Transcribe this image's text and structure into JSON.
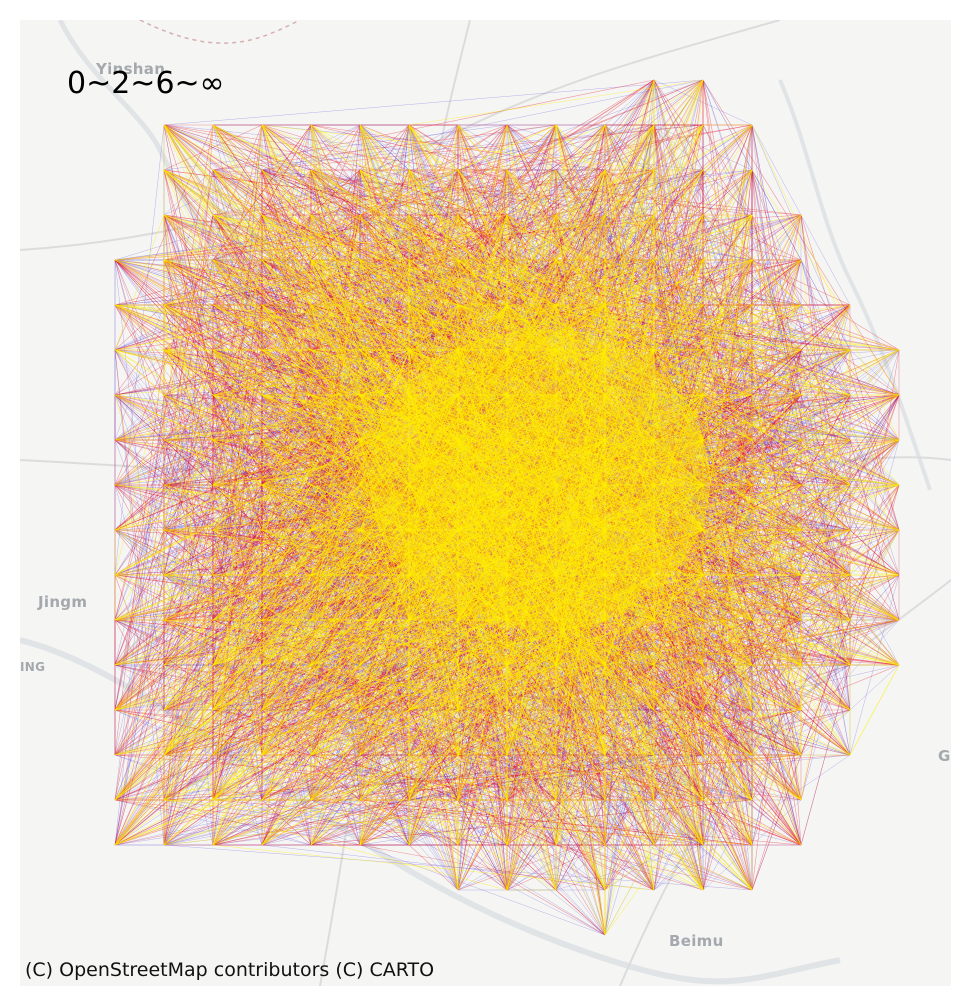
{
  "map": {
    "legend_title": "0~2~6~∞",
    "attribution": "(C) OpenStreetMap contributors (C) CARTO",
    "places": [
      {
        "id": "yinshan",
        "label": "Yinshan"
      },
      {
        "id": "jingmen",
        "label": "Jingm"
      },
      {
        "id": "ing",
        "label": "ING"
      },
      {
        "id": "beimu",
        "label": "Beimu"
      },
      {
        "id": "g-edge",
        "label": "G"
      }
    ],
    "flow_colors": {
      "low": "#4b35d6",
      "mid": "#e5152b",
      "high": "#ffee00"
    },
    "basemap_colors": {
      "background": "#f5f5f3",
      "roads": "#dcdcdc",
      "water": "#e3e6e8"
    }
  }
}
